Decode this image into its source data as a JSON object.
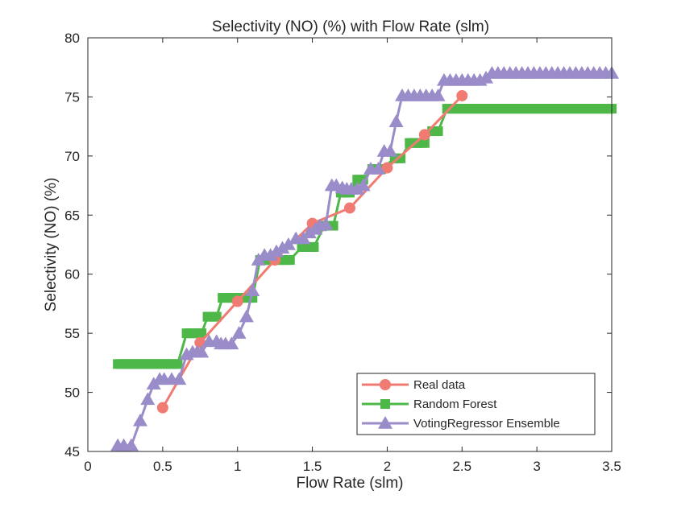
{
  "chart_data": {
    "type": "line",
    "title": "Selectivity (NO) (%) with Flow Rate (slm)",
    "xlabel": "Flow Rate (slm)",
    "ylabel": "Selectivity (NO) (%)",
    "xlim": [
      0,
      3.5
    ],
    "ylim": [
      45,
      80
    ],
    "xticks": [
      0,
      0.5,
      1,
      1.5,
      2,
      2.5,
      3,
      3.5
    ],
    "xtick_labels": [
      "0",
      "0.5",
      "1",
      "1.5",
      "2",
      "2.5",
      "3",
      "3.5"
    ],
    "yticks": [
      45,
      50,
      55,
      60,
      65,
      70,
      75,
      80
    ],
    "ytick_labels": [
      "45",
      "50",
      "55",
      "60",
      "65",
      "70",
      "75",
      "80"
    ],
    "grid": false,
    "legend_position": "bottom-right",
    "series": [
      {
        "name": "Real data",
        "color": "#f07b72",
        "marker": "circle",
        "x": [
          0.5,
          0.75,
          1.0,
          1.25,
          1.5,
          1.75,
          2.0,
          2.25,
          2.5
        ],
        "y": [
          48.7,
          54.2,
          57.7,
          61.2,
          64.3,
          65.6,
          69.0,
          71.8,
          75.1
        ]
      },
      {
        "name": "Random Forest",
        "color": "#4db848",
        "marker": "square",
        "x": [
          0.2,
          0.22,
          0.24,
          0.26,
          0.28,
          0.3,
          0.32,
          0.34,
          0.36,
          0.38,
          0.4,
          0.42,
          0.44,
          0.46,
          0.48,
          0.5,
          0.52,
          0.54,
          0.56,
          0.58,
          0.6,
          0.66,
          0.68,
          0.7,
          0.72,
          0.74,
          0.76,
          0.8,
          0.82,
          0.84,
          0.86,
          0.9,
          0.92,
          0.94,
          0.96,
          0.98,
          1.0,
          1.02,
          1.04,
          1.06,
          1.08,
          1.1,
          1.15,
          1.17,
          1.19,
          1.21,
          1.23,
          1.25,
          1.27,
          1.29,
          1.31,
          1.33,
          1.35,
          1.43,
          1.45,
          1.47,
          1.49,
          1.51,
          1.58,
          1.6,
          1.62,
          1.64,
          1.69,
          1.71,
          1.73,
          1.75,
          1.8,
          1.82,
          1.84,
          1.9,
          1.92,
          1.94,
          1.96,
          2.05,
          2.07,
          2.09,
          2.15,
          2.17,
          2.19,
          2.21,
          2.23,
          2.25,
          2.3,
          2.32,
          2.34,
          2.4,
          2.42,
          2.44,
          2.46,
          2.48,
          2.5,
          2.52,
          2.54,
          2.56,
          2.58,
          2.6,
          2.62,
          2.64,
          2.66,
          2.68,
          2.7,
          2.72,
          2.74,
          2.76,
          2.78,
          2.8,
          2.82,
          2.84,
          2.86,
          2.88,
          2.9,
          2.92,
          2.94,
          2.96,
          2.98,
          3.0,
          3.02,
          3.04,
          3.06,
          3.08,
          3.1,
          3.12,
          3.14,
          3.16,
          3.18,
          3.2,
          3.22,
          3.24,
          3.26,
          3.28,
          3.3,
          3.32,
          3.34,
          3.36,
          3.38,
          3.4,
          3.42,
          3.44,
          3.46,
          3.48,
          3.5
        ],
        "y": [
          52.4,
          52.4,
          52.4,
          52.4,
          52.4,
          52.4,
          52.4,
          52.4,
          52.4,
          52.4,
          52.4,
          52.4,
          52.4,
          52.4,
          52.4,
          52.4,
          52.4,
          52.4,
          52.4,
          52.4,
          52.4,
          55.0,
          55.0,
          55.0,
          55.0,
          55.0,
          55.0,
          56.4,
          56.4,
          56.4,
          56.4,
          58.0,
          58.0,
          58.0,
          58.0,
          58.0,
          58.0,
          58.0,
          58.0,
          58.0,
          58.0,
          58.0,
          61.2,
          61.2,
          61.2,
          61.2,
          61.2,
          61.2,
          61.2,
          61.2,
          61.2,
          61.2,
          61.2,
          62.3,
          62.3,
          62.3,
          62.3,
          62.3,
          64.1,
          64.1,
          64.1,
          64.1,
          66.9,
          66.9,
          66.9,
          66.9,
          68.0,
          68.0,
          68.0,
          68.9,
          68.9,
          68.9,
          68.9,
          69.8,
          69.8,
          69.8,
          71.1,
          71.1,
          71.1,
          71.1,
          71.1,
          71.1,
          72.1,
          72.1,
          72.1,
          74.0,
          74.0,
          74.0,
          74.0,
          74.0,
          74.0,
          74.0,
          74.0,
          74.0,
          74.0,
          74.0,
          74.0,
          74.0,
          74.0,
          74.0,
          74.0,
          74.0,
          74.0,
          74.0,
          74.0,
          74.0,
          74.0,
          74.0,
          74.0,
          74.0,
          74.0,
          74.0,
          74.0,
          74.0,
          74.0,
          74.0,
          74.0,
          74.0,
          74.0,
          74.0,
          74.0,
          74.0,
          74.0,
          74.0,
          74.0,
          74.0,
          74.0,
          74.0,
          74.0,
          74.0,
          74.0,
          74.0,
          74.0,
          74.0,
          74.0,
          74.0,
          74.0,
          74.0,
          74.0,
          74.0,
          74.0
        ]
      },
      {
        "name": "VotingRegressor Ensemble",
        "color": "#9a8bc9",
        "marker": "triangle",
        "x": [
          0.2,
          0.24,
          0.29,
          0.35,
          0.4,
          0.44,
          0.48,
          0.51,
          0.56,
          0.61,
          0.66,
          0.7,
          0.73,
          0.76,
          0.81,
          0.86,
          0.89,
          0.92,
          0.96,
          1.01,
          1.06,
          1.1,
          1.14,
          1.18,
          1.22,
          1.26,
          1.3,
          1.34,
          1.39,
          1.44,
          1.48,
          1.52,
          1.55,
          1.59,
          1.63,
          1.66,
          1.7,
          1.73,
          1.76,
          1.8,
          1.84,
          1.89,
          1.94,
          1.98,
          2.02,
          2.06,
          2.1,
          2.14,
          2.18,
          2.22,
          2.26,
          2.3,
          2.34,
          2.38,
          2.42,
          2.46,
          2.5,
          2.54,
          2.58,
          2.62,
          2.66,
          2.7,
          2.74,
          2.78,
          2.82,
          2.86,
          2.9,
          2.94,
          2.98,
          3.02,
          3.06,
          3.1,
          3.14,
          3.18,
          3.22,
          3.26,
          3.3,
          3.34,
          3.38,
          3.42,
          3.46,
          3.5
        ],
        "y": [
          45.5,
          45.5,
          45.5,
          47.6,
          49.4,
          50.7,
          51.1,
          51.1,
          51.1,
          51.1,
          53.2,
          53.4,
          53.4,
          53.4,
          54.3,
          54.3,
          54.1,
          54.1,
          54.1,
          55.0,
          56.4,
          58.6,
          61.2,
          61.6,
          61.6,
          61.9,
          62.2,
          62.5,
          63.0,
          63.0,
          63.5,
          63.8,
          64.1,
          64.2,
          67.5,
          67.5,
          67.3,
          67.2,
          67.2,
          67.2,
          67.5,
          68.9,
          68.9,
          70.4,
          70.4,
          72.9,
          75.1,
          75.1,
          75.1,
          75.1,
          75.1,
          75.1,
          75.1,
          76.4,
          76.4,
          76.4,
          76.4,
          76.4,
          76.4,
          76.4,
          76.6,
          77.0,
          77.0,
          77.0,
          77.0,
          77.0,
          77.0,
          77.0,
          77.0,
          77.0,
          77.0,
          77.0,
          77.0,
          77.0,
          77.0,
          77.0,
          77.0,
          77.0,
          77.0,
          77.0,
          77.0,
          77.0
        ]
      }
    ]
  }
}
